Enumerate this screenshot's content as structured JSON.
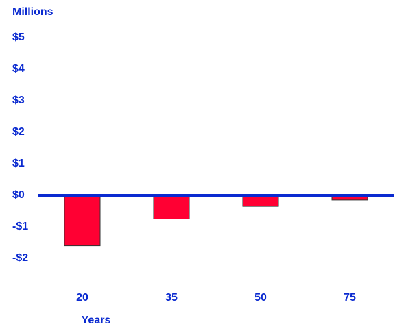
{
  "chart_data": {
    "type": "bar",
    "y_label": "Millions",
    "x_label": "Years",
    "categories": [
      "20",
      "35",
      "50",
      "75"
    ],
    "values": [
      -1.6,
      -0.75,
      -0.35,
      -0.15
    ],
    "color": "#ff0033",
    "axis_color": "#0a2ad0",
    "ylim": [
      -2.4,
      5.2
    ],
    "yticks": [
      {
        "value": 5,
        "label": "$5"
      },
      {
        "value": 4,
        "label": "$4"
      },
      {
        "value": 3,
        "label": "$3"
      },
      {
        "value": 2,
        "label": "$2"
      },
      {
        "value": 1,
        "label": "$1"
      },
      {
        "value": 0,
        "label": "$0"
      },
      {
        "value": -1,
        "label": "-$1"
      },
      {
        "value": -2,
        "label": "-$2"
      }
    ],
    "grid": false
  }
}
